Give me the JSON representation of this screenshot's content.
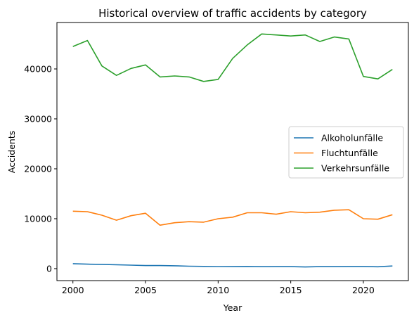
{
  "chart_data": {
    "type": "line",
    "title": "Historical overview of traffic accidents by category",
    "xlabel": "Year",
    "ylabel": "Accidents",
    "xlim": [
      1998.9,
      2023.1
    ],
    "ylim": [
      -2400,
      49300
    ],
    "xticks": [
      2000,
      2005,
      2010,
      2015,
      2020
    ],
    "yticks": [
      0,
      10000,
      20000,
      30000,
      40000
    ],
    "grid": false,
    "legend_position": "center-right",
    "x": [
      2000,
      2001,
      2002,
      2003,
      2004,
      2005,
      2006,
      2007,
      2008,
      2009,
      2010,
      2011,
      2012,
      2013,
      2014,
      2015,
      2016,
      2017,
      2018,
      2019,
      2020,
      2021,
      2022
    ],
    "series": [
      {
        "name": "Alkoholunfälle",
        "color": "#1f77b4",
        "values": [
          1000,
          900,
          850,
          780,
          700,
          620,
          620,
          570,
          490,
          450,
          420,
          410,
          430,
          390,
          400,
          410,
          330,
          410,
          400,
          430,
          430,
          380,
          530
        ]
      },
      {
        "name": "Fluchtunfälle",
        "color": "#ff7f0e",
        "values": [
          11500,
          11400,
          10700,
          9700,
          10600,
          11100,
          8700,
          9200,
          9400,
          9300,
          10000,
          10300,
          11200,
          11200,
          10900,
          11400,
          11200,
          11300,
          11700,
          11800,
          10000,
          9900,
          10800
        ]
      },
      {
        "name": "Verkehrsunfälle",
        "color": "#2ca02c",
        "values": [
          44500,
          45700,
          40600,
          38700,
          40100,
          40800,
          38400,
          38600,
          38400,
          37500,
          37900,
          42100,
          44800,
          47000,
          46800,
          46600,
          46800,
          45500,
          46400,
          46000,
          38500,
          38000,
          39900
        ]
      }
    ]
  }
}
